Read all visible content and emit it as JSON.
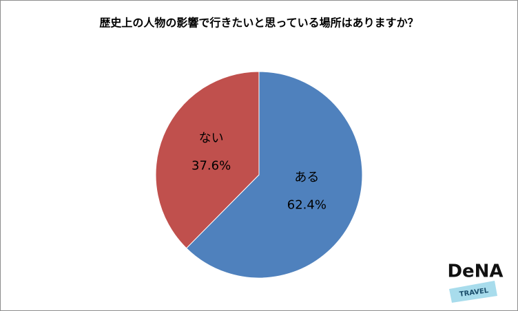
{
  "chart_data": {
    "type": "pie",
    "title": "歴史上の人物の影響で行きたいと思っている場所はありますか？",
    "categories": [
      "ある",
      "ない"
    ],
    "values": [
      62.4,
      37.6
    ],
    "value_labels": [
      "62.4%",
      "37.6%"
    ],
    "colors": [
      "#4f81bd",
      "#c0504d"
    ],
    "logo": {
      "name": "DeNA",
      "sub": "TRAVEL"
    }
  }
}
